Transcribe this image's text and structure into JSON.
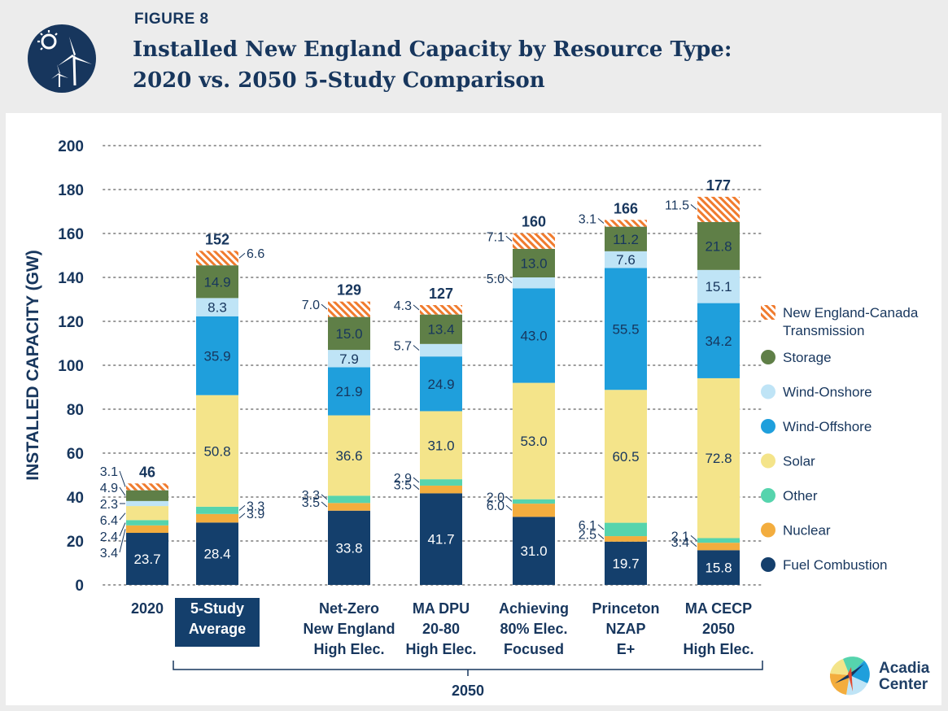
{
  "figure_label": "FIGURE 8",
  "title_line_1": "Installed New England Capacity by Resource Type:",
  "title_line_2": "2020 vs. 2050 5-Study Comparison",
  "brand": {
    "line1": "Acadia",
    "line2": "Center"
  },
  "colors": {
    "fuel_combustion": "#143f6c",
    "nuclear": "#f3ad3e",
    "other": "#56d4ad",
    "solar": "#f4e48a",
    "wind_offshore": "#1f9fdc",
    "wind_onshore": "#bfe4f6",
    "storage": "#5f7f47",
    "transmission_hatch": "#f07b2e",
    "axis_text": "#17365d"
  },
  "chart_data": {
    "type": "bar",
    "stacked": true,
    "ylabel": "INSTALLED CAPACITY (GW)",
    "ylim": [
      0,
      200
    ],
    "yticks": [
      "0",
      "20",
      "40",
      "60",
      "80",
      "100",
      "120",
      "140",
      "160",
      "180",
      "200"
    ],
    "grid": "horizontal dotted",
    "legend_position": "right",
    "group_label": "2050",
    "categories": [
      [
        "2020"
      ],
      [
        "5-Study",
        "Average"
      ],
      [
        "Net-Zero",
        "New England",
        "High Elec."
      ],
      [
        "MA DPU",
        "20-80",
        "High Elec."
      ],
      [
        "Achieving",
        "80% Elec.",
        "Focused"
      ],
      [
        "Princeton",
        "NZAP",
        "E+"
      ],
      [
        "MA CECP",
        "2050",
        "High Elec."
      ]
    ],
    "highlighted_category": 1,
    "totals": [
      "46",
      "152",
      "129",
      "127",
      "160",
      "166",
      "177"
    ],
    "series": [
      {
        "name": "Fuel Combustion",
        "key": "fuel_combustion",
        "values": [
          23.7,
          28.4,
          33.8,
          41.7,
          31.0,
          19.7,
          15.8
        ]
      },
      {
        "name": "Nuclear",
        "key": "nuclear",
        "values": [
          3.4,
          3.9,
          3.5,
          3.5,
          6.0,
          2.5,
          3.4
        ]
      },
      {
        "name": "Other",
        "key": "other",
        "values": [
          2.4,
          3.3,
          3.3,
          2.9,
          2.0,
          6.1,
          2.1
        ]
      },
      {
        "name": "Solar",
        "key": "solar",
        "values": [
          6.4,
          50.8,
          36.6,
          31.0,
          53.0,
          60.5,
          72.8
        ]
      },
      {
        "name": "Wind-Offshore",
        "key": "wind_offshore",
        "values": [
          0,
          35.9,
          21.9,
          24.9,
          43.0,
          55.5,
          34.2
        ]
      },
      {
        "name": "Wind-Onshore",
        "key": "wind_onshore",
        "values": [
          2.3,
          8.3,
          7.9,
          5.7,
          5.0,
          7.6,
          15.1
        ]
      },
      {
        "name": "Storage",
        "key": "storage",
        "values": [
          4.9,
          14.9,
          15.0,
          13.4,
          13.0,
          11.2,
          21.8
        ]
      },
      {
        "name": "New England-Canada Transmission",
        "key": "transmission_hatch",
        "values": [
          3.1,
          6.6,
          7.0,
          4.3,
          7.1,
          3.1,
          11.5
        ]
      }
    ],
    "legend": [
      {
        "key": "transmission_hatch",
        "lines": [
          "New England-Canada",
          "Transmission"
        ]
      },
      {
        "key": "storage",
        "lines": [
          "Storage"
        ]
      },
      {
        "key": "wind_onshore",
        "lines": [
          "Wind-Onshore"
        ]
      },
      {
        "key": "wind_offshore",
        "lines": [
          "Wind-Offshore"
        ]
      },
      {
        "key": "solar",
        "lines": [
          "Solar"
        ]
      },
      {
        "key": "other",
        "lines": [
          "Other"
        ]
      },
      {
        "key": "nuclear",
        "lines": [
          "Nuclear"
        ]
      },
      {
        "key": "fuel_combustion",
        "lines": [
          "Fuel Combustion"
        ]
      }
    ],
    "inside_labels": [
      {
        "bar": 0,
        "text": "23.7"
      },
      {
        "bar": 1,
        "series": 0,
        "text": "28.4"
      },
      {
        "bar": 1,
        "series": 3,
        "text": "50.8"
      },
      {
        "bar": 1,
        "series": 4,
        "text": "35.9"
      },
      {
        "bar": 1,
        "series": 5,
        "text": "8.3"
      },
      {
        "bar": 1,
        "series": 6,
        "text": "14.9"
      },
      {
        "bar": 2,
        "series": 0,
        "text": "33.8"
      },
      {
        "bar": 2,
        "series": 3,
        "text": "36.6"
      },
      {
        "bar": 2,
        "series": 4,
        "text": "21.9"
      },
      {
        "bar": 2,
        "series": 5,
        "text": "7.9"
      },
      {
        "bar": 2,
        "series": 6,
        "text": "15.0"
      },
      {
        "bar": 3,
        "series": 0,
        "text": "41.7"
      },
      {
        "bar": 3,
        "series": 3,
        "text": "31.0"
      },
      {
        "bar": 3,
        "series": 4,
        "text": "24.9"
      },
      {
        "bar": 3,
        "series": 6,
        "text": "13.4"
      },
      {
        "bar": 4,
        "series": 0,
        "text": "31.0"
      },
      {
        "bar": 4,
        "series": 3,
        "text": "53.0"
      },
      {
        "bar": 4,
        "series": 4,
        "text": "43.0"
      },
      {
        "bar": 4,
        "series": 6,
        "text": "13.0"
      },
      {
        "bar": 5,
        "series": 0,
        "text": "19.7"
      },
      {
        "bar": 5,
        "series": 3,
        "text": "60.5"
      },
      {
        "bar": 5,
        "series": 4,
        "text": "55.5"
      },
      {
        "bar": 5,
        "series": 5,
        "text": "7.6"
      },
      {
        "bar": 5,
        "series": 6,
        "text": "11.2"
      },
      {
        "bar": 6,
        "series": 0,
        "text": "15.8"
      },
      {
        "bar": 6,
        "series": 3,
        "text": "72.8"
      },
      {
        "bar": 6,
        "series": 4,
        "text": "34.2"
      },
      {
        "bar": 6,
        "series": 5,
        "text": "15.1"
      },
      {
        "bar": 6,
        "series": 6,
        "text": "21.8"
      }
    ],
    "callouts": [
      {
        "bar": 0,
        "series": 7,
        "side": "left",
        "text": "3.1"
      },
      {
        "bar": 0,
        "series": 6,
        "side": "left",
        "text": "4.9"
      },
      {
        "bar": 0,
        "series": 5,
        "side": "left",
        "text": "2.3"
      },
      {
        "bar": 0,
        "series": 3,
        "side": "left",
        "text": "6.4"
      },
      {
        "bar": 0,
        "series": 2,
        "side": "left",
        "text": "2.4"
      },
      {
        "bar": 0,
        "series": 1,
        "side": "left",
        "text": "3.4"
      },
      {
        "bar": 1,
        "series": 7,
        "side": "right",
        "text": "6.6"
      },
      {
        "bar": 1,
        "series": 2,
        "side": "right",
        "text": "3.3"
      },
      {
        "bar": 1,
        "series": 1,
        "side": "right",
        "text": "3.9"
      },
      {
        "bar": 2,
        "series": 7,
        "side": "left",
        "text": "7.0"
      },
      {
        "bar": 2,
        "series": 2,
        "side": "left",
        "text": "3.3"
      },
      {
        "bar": 2,
        "series": 1,
        "side": "left",
        "text": "3.5"
      },
      {
        "bar": 3,
        "series": 7,
        "side": "left",
        "text": "4.3"
      },
      {
        "bar": 3,
        "series": 5,
        "side": "left",
        "text": "5.7"
      },
      {
        "bar": 3,
        "series": 2,
        "side": "left",
        "text": "2.9"
      },
      {
        "bar": 3,
        "series": 1,
        "side": "left",
        "text": "3.5"
      },
      {
        "bar": 4,
        "series": 7,
        "side": "left",
        "text": "7.1"
      },
      {
        "bar": 4,
        "series": 5,
        "side": "left",
        "text": "5.0"
      },
      {
        "bar": 4,
        "series": 2,
        "side": "left",
        "text": "2.0"
      },
      {
        "bar": 4,
        "series": 1,
        "side": "left",
        "text": "6.0"
      },
      {
        "bar": 5,
        "series": 7,
        "side": "left",
        "text": "3.1"
      },
      {
        "bar": 5,
        "series": 2,
        "side": "left",
        "text": "6.1"
      },
      {
        "bar": 5,
        "series": 1,
        "side": "left",
        "text": "2.5"
      },
      {
        "bar": 6,
        "series": 7,
        "side": "left",
        "text": "11.5"
      },
      {
        "bar": 6,
        "series": 2,
        "side": "left",
        "text": "2.1"
      },
      {
        "bar": 6,
        "series": 1,
        "side": "left",
        "text": "3.4"
      }
    ]
  }
}
